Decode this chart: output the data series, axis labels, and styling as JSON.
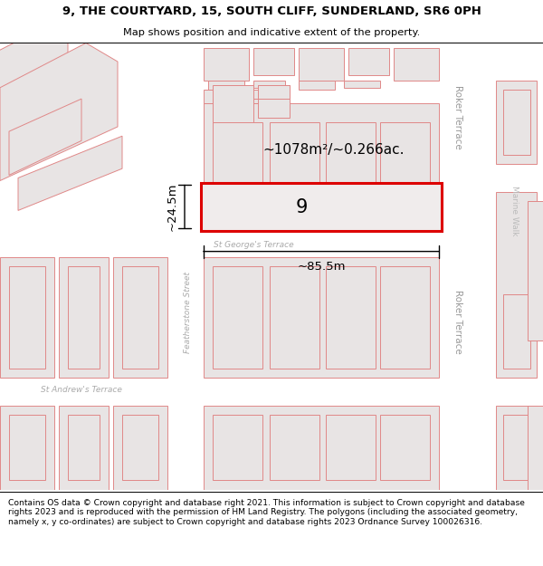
{
  "title": "9, THE COURTYARD, 15, SOUTH CLIFF, SUNDERLAND, SR6 0PH",
  "subtitle": "Map shows position and indicative extent of the property.",
  "footer": "Contains OS data © Crown copyright and database right 2021. This information is subject to Crown copyright and database rights 2023 and is reproduced with the permission of HM Land Registry. The polygons (including the associated geometry, namely x, y co-ordinates) are subject to Crown copyright and database rights 2023 Ordnance Survey 100026316.",
  "area_label": "~1078m²/~0.266ac.",
  "width_label": "~85.5m",
  "height_label": "~24.5m",
  "property_number": "9",
  "map_bg": "#eeecec",
  "road_color": "#ffffff",
  "building_fill": "#e8e4e4",
  "building_edge": "#e08888",
  "highlight_color": "#dd0000",
  "highlight_fill": "#f0ecec",
  "text_gray": "#aaaaaa",
  "text_dark": "#888888",
  "street_roker": "Roker Terrace",
  "street_george": "St George's Terrace",
  "street_feather": "Featherstone Street",
  "street_andrew": "St Andrew's Terrace",
  "street_marine": "Marine Walk"
}
